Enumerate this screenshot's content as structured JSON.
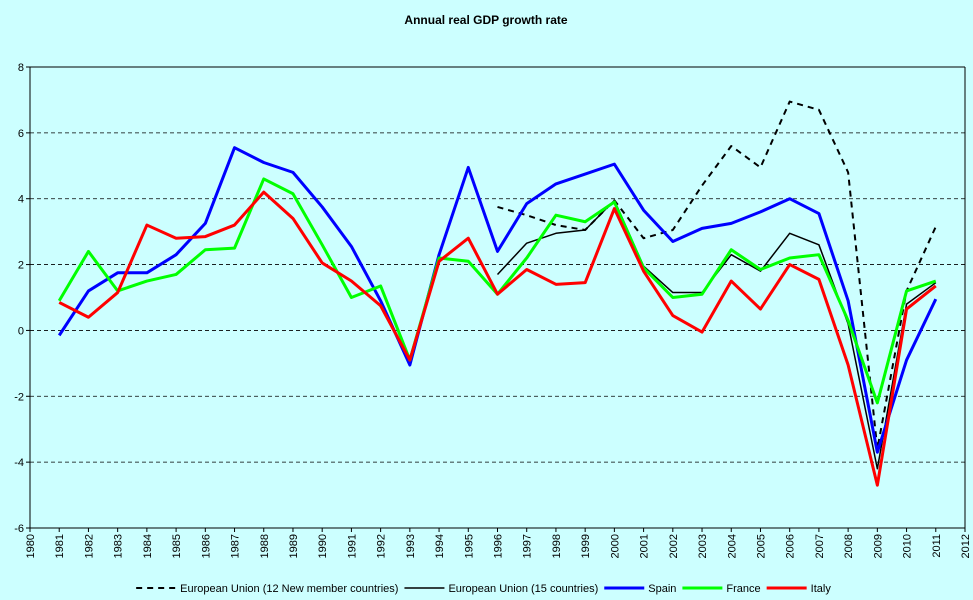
{
  "chart_data": {
    "type": "line",
    "title": "Annual real GDP growth rate",
    "x": [
      1981,
      1982,
      1983,
      1984,
      1985,
      1986,
      1987,
      1988,
      1989,
      1990,
      1991,
      1992,
      1993,
      1994,
      1995,
      1996,
      1997,
      1998,
      1999,
      2000,
      2001,
      2002,
      2003,
      2004,
      2005,
      2006,
      2007,
      2008,
      2009,
      2010,
      2011
    ],
    "xlim": [
      1980,
      2012
    ],
    "xticks": [
      1980,
      1981,
      1982,
      1983,
      1984,
      1985,
      1986,
      1987,
      1988,
      1989,
      1990,
      1991,
      1992,
      1993,
      1994,
      1995,
      1996,
      1997,
      1998,
      1999,
      2000,
      2001,
      2002,
      2003,
      2004,
      2005,
      2006,
      2007,
      2008,
      2009,
      2010,
      2011,
      2012
    ],
    "ylim": [
      -6,
      8
    ],
    "yticks": [
      -6,
      -4,
      -2,
      0,
      2,
      4,
      6,
      8
    ],
    "grid": true,
    "legend": "bottom",
    "series": [
      {
        "name": "European Union (12 New member countries)",
        "color": "#000000",
        "dashed": true,
        "values": [
          null,
          null,
          null,
          null,
          null,
          null,
          null,
          null,
          null,
          null,
          null,
          null,
          null,
          null,
          null,
          3.75,
          3.5,
          3.2,
          3.05,
          3.95,
          2.8,
          3.05,
          4.4,
          5.6,
          4.95,
          6.95,
          6.7,
          4.8,
          -3.6,
          1.2,
          3.15
        ]
      },
      {
        "name": "European Union (15 countries)",
        "color": "#000000",
        "values": [
          null,
          null,
          null,
          null,
          null,
          null,
          null,
          null,
          null,
          null,
          null,
          null,
          null,
          null,
          null,
          1.7,
          2.65,
          2.95,
          3.05,
          3.95,
          1.95,
          1.15,
          1.15,
          2.3,
          1.8,
          2.95,
          2.6,
          0.2,
          -4.2,
          0.8,
          1.45
        ]
      },
      {
        "name": "Spain",
        "color": "#0000ff",
        "values": [
          -0.15,
          1.2,
          1.75,
          1.75,
          2.3,
          3.25,
          5.55,
          5.1,
          4.8,
          3.75,
          2.55,
          0.9,
          -1.05,
          2.3,
          4.95,
          2.4,
          3.85,
          4.45,
          4.75,
          5.05,
          3.65,
          2.7,
          3.1,
          3.25,
          3.6,
          4.0,
          3.55,
          0.9,
          -3.7,
          -0.9,
          0.95
        ]
      },
      {
        "name": "France",
        "color": "#00ff00",
        "values": [
          0.9,
          2.4,
          1.2,
          1.5,
          1.7,
          2.45,
          2.5,
          4.6,
          4.15,
          2.6,
          1.0,
          1.35,
          -0.9,
          2.2,
          2.1,
          1.1,
          2.2,
          3.5,
          3.3,
          3.9,
          1.9,
          1.0,
          1.1,
          2.45,
          1.85,
          2.2,
          2.3,
          0.3,
          -2.2,
          1.2,
          1.5
        ]
      },
      {
        "name": "Italy",
        "color": "#ff0000",
        "values": [
          0.85,
          0.4,
          1.15,
          3.2,
          2.8,
          2.85,
          3.2,
          4.2,
          3.4,
          2.05,
          1.5,
          0.75,
          -0.9,
          2.1,
          2.8,
          1.1,
          1.85,
          1.4,
          1.45,
          3.7,
          1.8,
          0.45,
          -0.05,
          1.5,
          0.65,
          2.0,
          1.55,
          -1.05,
          -4.7,
          0.65,
          1.35
        ]
      }
    ]
  }
}
